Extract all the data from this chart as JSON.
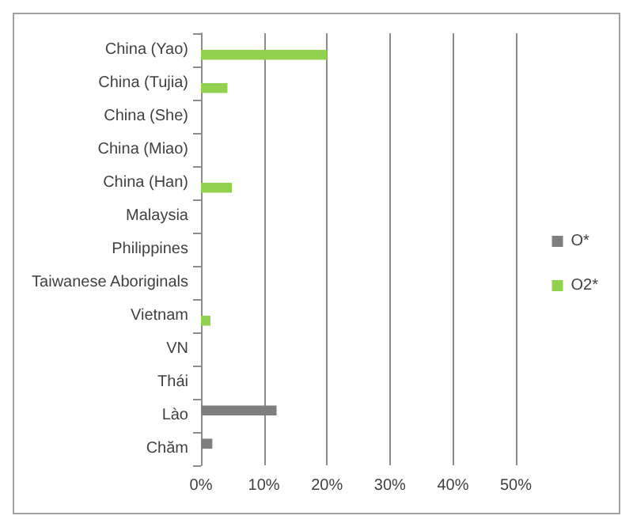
{
  "chart_data": {
    "type": "bar",
    "orientation": "horizontal",
    "categories": [
      "China (Yao)",
      "China (Tujia)",
      "China (She)",
      "China (Miao)",
      "China (Han)",
      "Malaysia",
      "Philippines",
      "Taiwanese Aboriginals",
      "Vietnam",
      "VN",
      "Thái",
      "Lào",
      "Chăm"
    ],
    "series": [
      {
        "name": "O*",
        "color": "#7f7f7f",
        "values": [
          0,
          0,
          0,
          0,
          0,
          0,
          0,
          0,
          0,
          0,
          0,
          12,
          1.8
        ]
      },
      {
        "name": "O2*",
        "color": "#92d050",
        "values": [
          20,
          4.2,
          0,
          0,
          4.9,
          0,
          0,
          0,
          1.5,
          0,
          0,
          0,
          0
        ]
      }
    ],
    "xlim": [
      0,
      50
    ],
    "xticks": [
      {
        "value": 0,
        "label": "0%"
      },
      {
        "value": 10,
        "label": "10%"
      },
      {
        "value": 20,
        "label": "20%"
      },
      {
        "value": 30,
        "label": "30%"
      },
      {
        "value": 40,
        "label": "40%"
      },
      {
        "value": 50,
        "label": "50%"
      }
    ],
    "grid": "x",
    "legend": "right"
  }
}
